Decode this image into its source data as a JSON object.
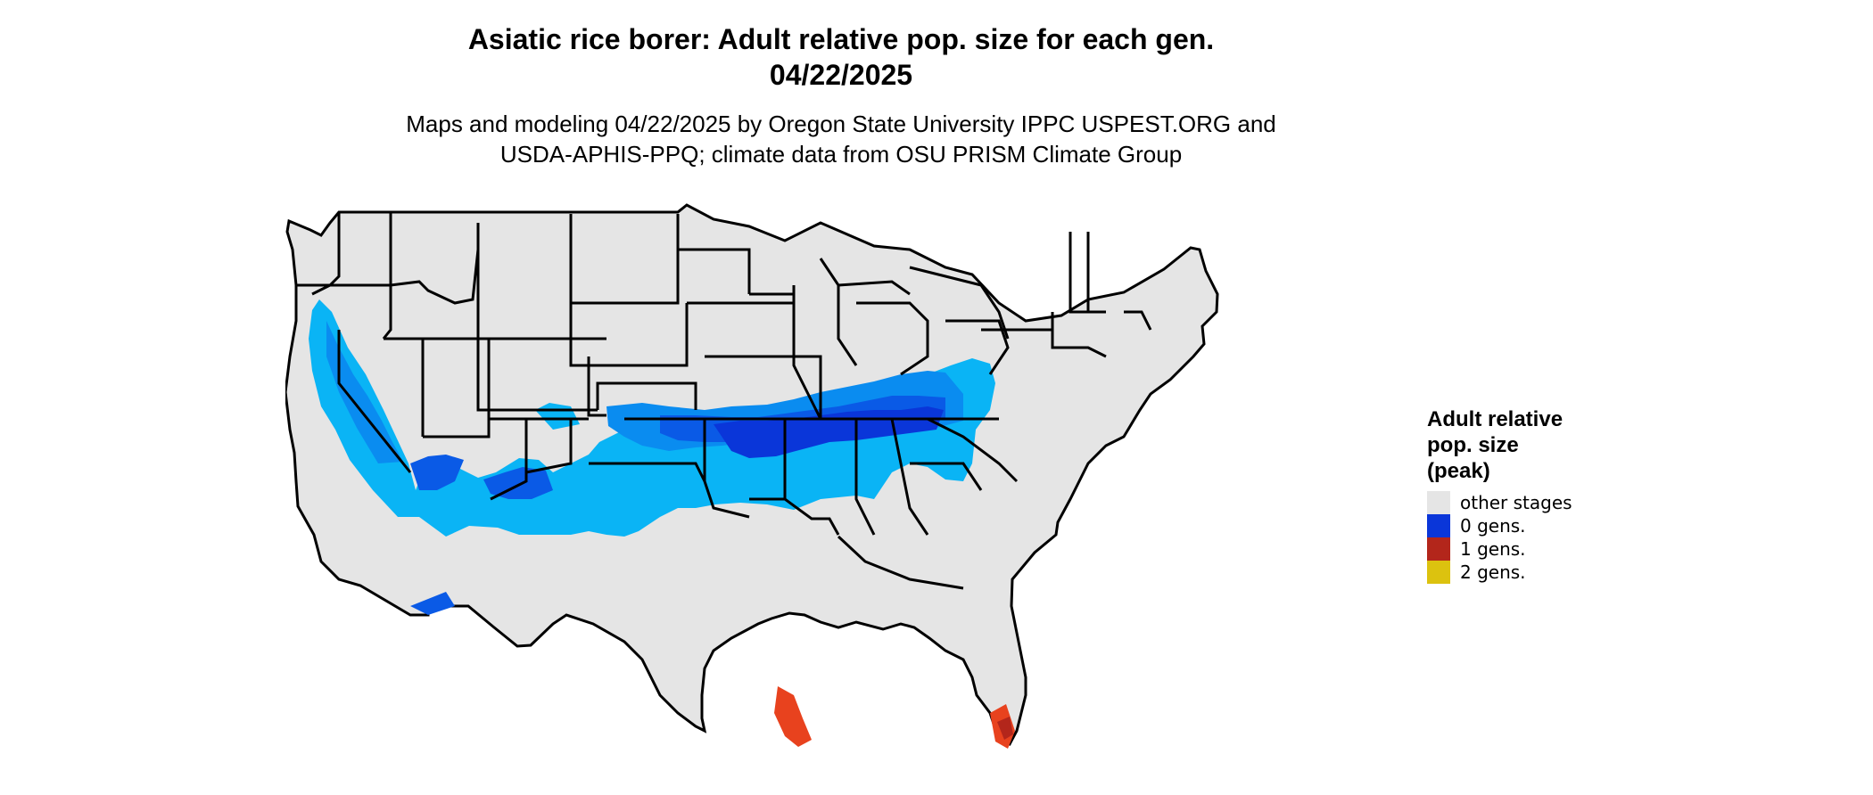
{
  "title": {
    "line1": "Asiatic rice borer: Adult relative pop. size for each gen.",
    "line2": "04/22/2025"
  },
  "subtitle": {
    "line1": "Maps and modeling 04/22/2025 by Oregon State University IPPC USPEST.ORG and",
    "line2": "USDA-APHIS-PPQ; climate data from OSU PRISM Climate Group"
  },
  "legend": {
    "title_lines": [
      "Adult relative",
      "pop. size",
      "(peak)"
    ],
    "items": [
      {
        "label": "other stages",
        "color": "#e5e5e5"
      },
      {
        "label": "0 gens.",
        "color": "#0a36d9"
      },
      {
        "label": "1 gens.",
        "color": "#b3261b"
      },
      {
        "label": "2 gens.",
        "color": "#dcc20f"
      }
    ]
  },
  "map_colors": {
    "land": "#e5e5e5",
    "border": "#000000",
    "light_blue": "#0ab4f5",
    "mid_blue": "#0a8cf0",
    "dark_blue": "#0a5ae6",
    "deep_blue": "#0a36d9",
    "orange": "#e8421e",
    "dark_red": "#b3261b"
  }
}
